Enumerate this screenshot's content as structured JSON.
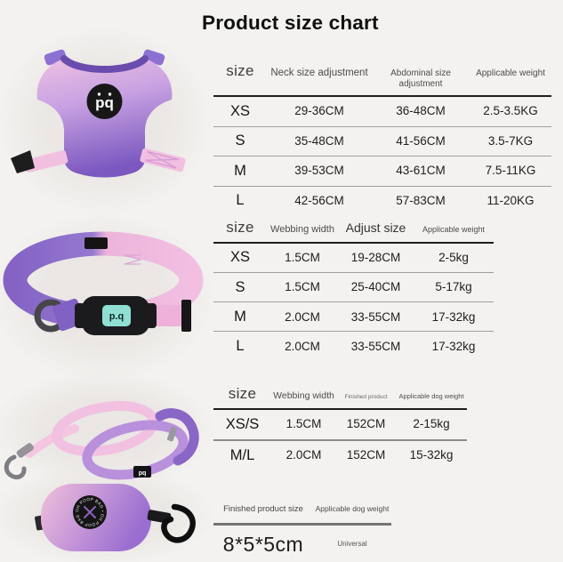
{
  "page": {
    "title": "Product size chart",
    "background": "#f4f2f0"
  },
  "colors": {
    "pink": "#f2b9de",
    "lavender": "#c49be0",
    "purple": "#8161c4",
    "dark_purple": "#6a4cae",
    "hardware_black": "#1b1b1d",
    "logo_mint": "#8fe0d2",
    "header_line": "#1f1f1f",
    "row_line": "#9e9e9e"
  },
  "products": {
    "harness": {
      "logo_text": "pq"
    },
    "collar": {
      "buckle_logo_text": "p.q"
    },
    "leash": {
      "tag_logo_text": "pq"
    },
    "poop_bag": {
      "ring_text": "OH POOP BAG • OH POOP BAG •"
    }
  },
  "tables": [
    {
      "headers": [
        "size",
        "Neck size adjustment",
        "Abdominal size adjustment",
        "Applicable weight"
      ],
      "rows": [
        [
          "XS",
          "29-36CM",
          "36-48CM",
          "2.5-3.5KG"
        ],
        [
          "S",
          "35-48CM",
          "41-56CM",
          "3.5-7KG"
        ],
        [
          "M",
          "39-53CM",
          "43-61CM",
          "7.5-11KG"
        ],
        [
          "L",
          "42-56CM",
          "57-83CM",
          "11-20KG"
        ]
      ]
    },
    {
      "headers": [
        "size",
        "Webbing width",
        "Adjust size",
        "Applicable weight"
      ],
      "rows": [
        [
          "XS",
          "1.5CM",
          "19-28CM",
          "2-5kg"
        ],
        [
          "S",
          "1.5CM",
          "25-40CM",
          "5-17kg"
        ],
        [
          "M",
          "2.0CM",
          "33-55CM",
          "17-32kg"
        ],
        [
          "L",
          "2.0CM",
          "33-55CM",
          "17-32kg"
        ]
      ]
    },
    {
      "headers": [
        "size",
        "Webbing width",
        "Finished product",
        "Applicable dog weight"
      ],
      "rows": [
        [
          "XS/S",
          "1.5CM",
          "152CM",
          "2-15kg"
        ],
        [
          "M/L",
          "2.0CM",
          "152CM",
          "15-32kg"
        ]
      ]
    },
    {
      "headers": [
        "Finished product size",
        "Applicable dog weight"
      ],
      "rows": [
        [
          "8*5*5cm",
          "Universal"
        ]
      ]
    }
  ]
}
